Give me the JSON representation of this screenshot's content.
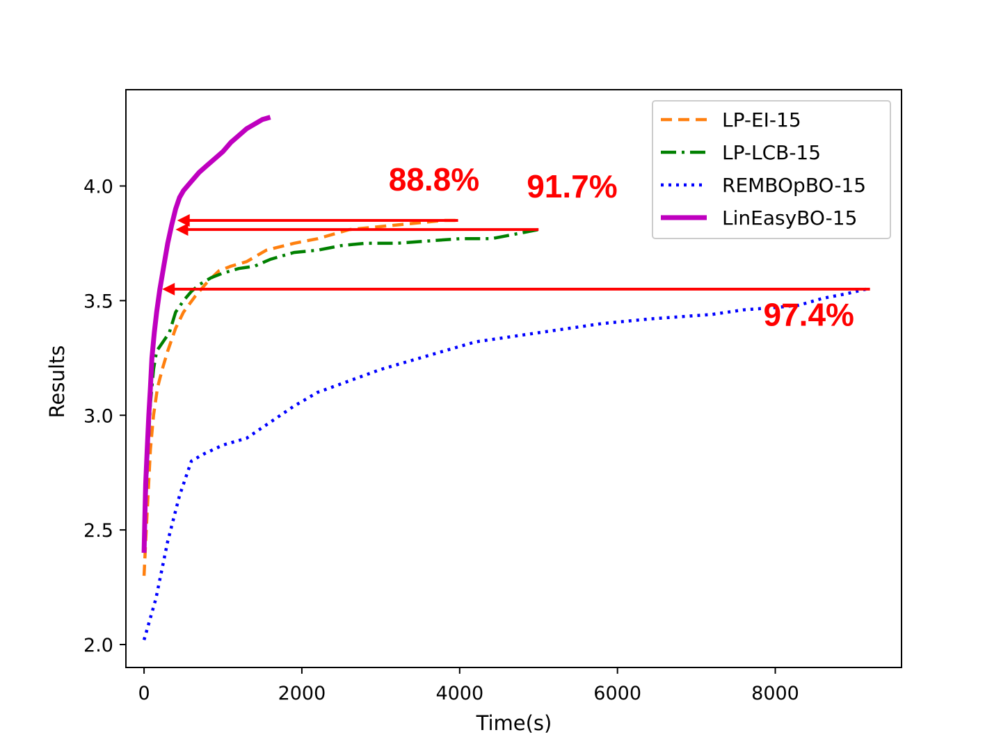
{
  "chart_data": {
    "type": "line",
    "xlabel": "Time(s)",
    "ylabel": "Results",
    "xlim": [
      -230,
      9600
    ],
    "ylim": [
      1.9,
      4.42
    ],
    "xticks": [
      0,
      2000,
      4000,
      6000,
      8000
    ],
    "xtick_labels": [
      "0",
      "2000",
      "4000",
      "6000",
      "8000"
    ],
    "yticks": [
      2.0,
      2.5,
      3.0,
      3.5,
      4.0
    ],
    "ytick_labels": [
      "2.0",
      "2.5",
      "3.0",
      "3.5",
      "4.0"
    ],
    "grid": false,
    "legend_position": "top-right",
    "series": [
      {
        "name": "LP-EI-15",
        "color": "#ff7f0e",
        "style": "dashed",
        "x": [
          0,
          20,
          50,
          80,
          120,
          170,
          230,
          300,
          400,
          500,
          650,
          800,
          950,
          1100,
          1300,
          1550,
          1900,
          2200,
          2400,
          2600,
          2900,
          3200,
          3500,
          3800,
          3950
        ],
        "y": [
          2.3,
          2.45,
          2.65,
          2.85,
          3.0,
          3.12,
          3.2,
          3.28,
          3.38,
          3.45,
          3.52,
          3.58,
          3.63,
          3.65,
          3.67,
          3.72,
          3.75,
          3.77,
          3.79,
          3.81,
          3.82,
          3.83,
          3.84,
          3.85,
          3.85
        ]
      },
      {
        "name": "LP-LCB-15",
        "color": "#008000",
        "style": "dashdot",
        "x": [
          0,
          20,
          50,
          80,
          120,
          160,
          200,
          260,
          320,
          400,
          500,
          600,
          700,
          850,
          1000,
          1200,
          1400,
          1600,
          1900,
          2200,
          2500,
          2800,
          3200,
          3600,
          4000,
          4400,
          4700,
          5000
        ],
        "y": [
          2.4,
          2.6,
          2.85,
          3.05,
          3.2,
          3.28,
          3.3,
          3.33,
          3.36,
          3.45,
          3.5,
          3.54,
          3.57,
          3.6,
          3.62,
          3.64,
          3.65,
          3.68,
          3.71,
          3.72,
          3.74,
          3.75,
          3.75,
          3.76,
          3.77,
          3.77,
          3.79,
          3.81
        ]
      },
      {
        "name": "REMBOpBO-15",
        "color": "#0000ff",
        "style": "dotted",
        "x": [
          0,
          150,
          300,
          450,
          600,
          750,
          1000,
          1300,
          1600,
          1900,
          2200,
          2600,
          3000,
          3400,
          3800,
          4200,
          4600,
          5000,
          5400,
          5800,
          6100,
          6400,
          6800,
          7200,
          7600,
          8000,
          8300,
          8600,
          8900,
          9150
        ],
        "y": [
          2.02,
          2.2,
          2.45,
          2.65,
          2.8,
          2.83,
          2.87,
          2.9,
          2.97,
          3.04,
          3.1,
          3.15,
          3.2,
          3.24,
          3.28,
          3.32,
          3.34,
          3.36,
          3.38,
          3.4,
          3.41,
          3.42,
          3.43,
          3.44,
          3.46,
          3.47,
          3.48,
          3.51,
          3.53,
          3.55
        ]
      },
      {
        "name": "LinEasyBO-15",
        "color": "#bf00bf",
        "style": "solid",
        "x": [
          0,
          10,
          20,
          40,
          60,
          80,
          100,
          130,
          160,
          200,
          250,
          300,
          350,
          400,
          450,
          500,
          600,
          700,
          800,
          900,
          1000,
          1100,
          1200,
          1300,
          1400,
          1500,
          1600
        ],
        "y": [
          2.4,
          2.55,
          2.7,
          2.85,
          3.0,
          3.12,
          3.25,
          3.36,
          3.45,
          3.55,
          3.65,
          3.75,
          3.83,
          3.9,
          3.95,
          3.98,
          4.02,
          4.06,
          4.09,
          4.12,
          4.15,
          4.19,
          4.22,
          4.25,
          4.27,
          4.29,
          4.3
        ]
      }
    ],
    "arrows": [
      {
        "from_x": 3980,
        "to_x": 420,
        "y": 3.85,
        "color": "#ff0000"
      },
      {
        "from_x": 5000,
        "to_x": 400,
        "y": 3.81,
        "color": "#ff0000"
      },
      {
        "from_x": 9200,
        "to_x": 230,
        "y": 3.55,
        "color": "#ff0000"
      }
    ],
    "annotations": [
      {
        "text": "88.8%",
        "x": 3100,
        "y": 3.98,
        "color": "#ff0000"
      },
      {
        "text": "91.7%",
        "x": 4850,
        "y": 3.95,
        "color": "#ff0000"
      },
      {
        "text": "97.4%",
        "x": 7850,
        "y": 3.39,
        "color": "#ff0000"
      }
    ]
  }
}
